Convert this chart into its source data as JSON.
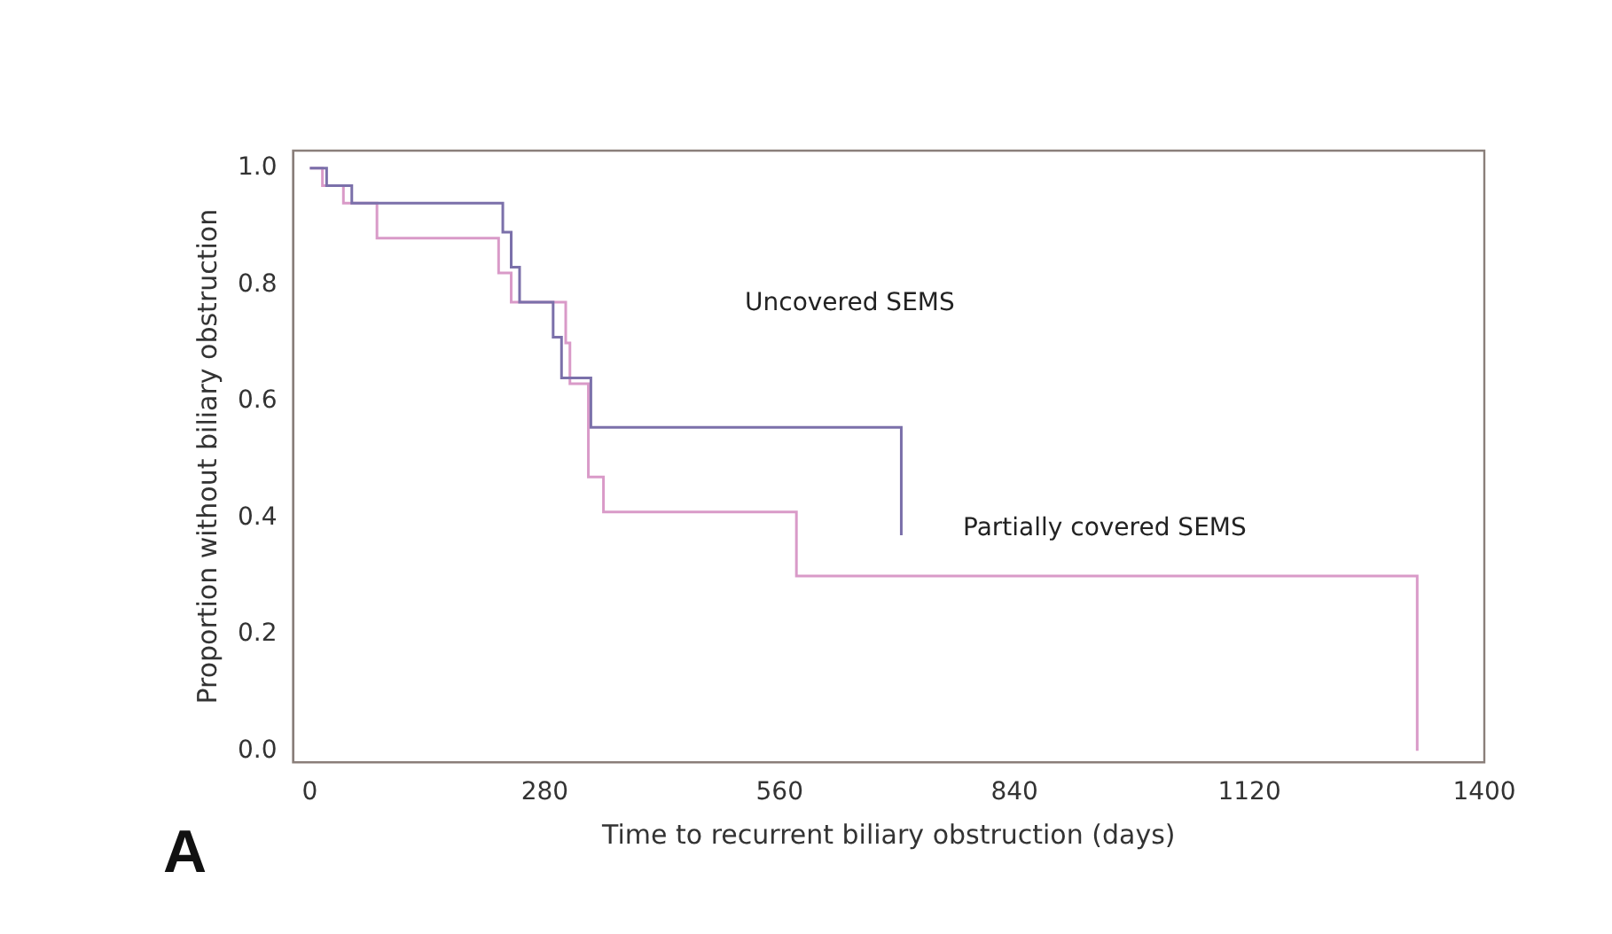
{
  "chart_data": {
    "type": "step",
    "xlabel": "Time to recurrent biliary obstruction (days)",
    "ylabel": "Proportion without biliary obstruction",
    "xlim": [
      -20,
      1400
    ],
    "xticks": [
      0,
      280,
      560,
      840,
      1120,
      1400
    ],
    "ylim": [
      -0.02,
      1.03
    ],
    "yticks": [
      {
        "value": 0,
        "label": "0.0"
      },
      {
        "value": 0.2,
        "label": "0.2"
      },
      {
        "value": 0.4,
        "label": "0.4"
      },
      {
        "value": 0.6,
        "label": "0.6"
      },
      {
        "value": 0.8,
        "label": "0.8"
      },
      {
        "value": 1,
        "label": "1.0"
      }
    ],
    "series": [
      {
        "color": "#7b70aa",
        "x": [
          0,
          20,
          50,
          230,
          240,
          250,
          290,
          300,
          335,
          705,
          705
        ],
        "values": [
          1,
          0.97,
          0.94,
          0.89,
          0.83,
          0.77,
          0.71,
          0.64,
          0.555,
          0.555,
          0.37
        ]
      },
      {
        "color": "#d99ac8",
        "x": [
          0,
          15,
          40,
          80,
          225,
          240,
          305,
          310,
          332,
          350,
          580,
          1320,
          1320
        ],
        "values": [
          1,
          0.97,
          0.94,
          0.88,
          0.82,
          0.77,
          0.7,
          0.63,
          0.47,
          0.41,
          0.3,
          0.3,
          0
        ]
      }
    ],
    "annotations": [
      "Uncovered SEMS",
      "Partially covered SEMS",
      "A"
    ],
    "legend": false,
    "grid": false
  }
}
